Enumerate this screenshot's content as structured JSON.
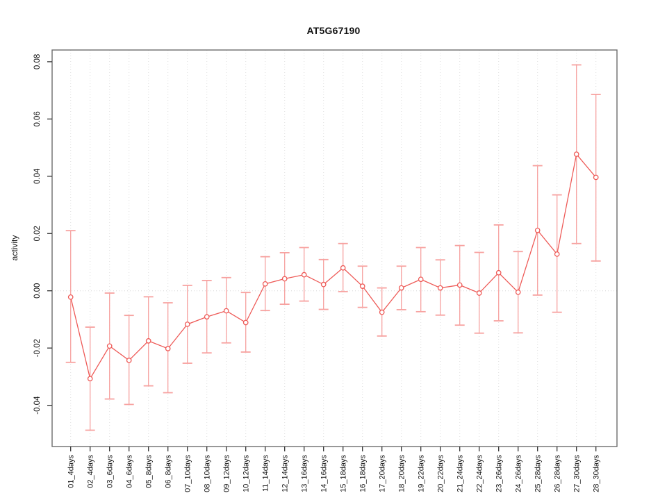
{
  "chart_data": {
    "type": "line",
    "title": "AT5G67190",
    "xlabel": "",
    "ylabel": "activity",
    "legend": "none",
    "categories": [
      "01_4days",
      "02_4days",
      "03_6days",
      "04_6days",
      "05_8days",
      "06_8days",
      "07_10days",
      "08_10days",
      "09_12days",
      "10_12days",
      "11_14days",
      "12_14days",
      "13_16days",
      "14_16days",
      "15_18days",
      "16_18days",
      "17_20days",
      "18_20days",
      "19_22days",
      "20_22days",
      "21_24days",
      "22_24days",
      "23_26days",
      "24_26days",
      "25_28days",
      "26_28days",
      "27_30days",
      "28_30days"
    ],
    "series": [
      {
        "name": "activity",
        "marker": "open-circle",
        "values": [
          -0.0022,
          -0.0307,
          -0.0193,
          -0.0243,
          -0.0175,
          -0.0202,
          -0.0117,
          -0.0091,
          -0.007,
          -0.0111,
          0.0024,
          0.0042,
          0.0056,
          0.0022,
          0.008,
          0.0016,
          -0.0075,
          0.001,
          0.004,
          0.001,
          0.002,
          -0.0008,
          0.0063,
          -0.0005,
          0.0211,
          0.0128,
          0.0477,
          0.0396
        ],
        "error_upper": [
          0.021,
          -0.0127,
          -0.0008,
          -0.0086,
          -0.0021,
          -0.0042,
          0.0019,
          0.0036,
          0.0046,
          -0.0006,
          0.0119,
          0.0133,
          0.0151,
          0.0109,
          0.0165,
          0.0086,
          0.001,
          0.0086,
          0.0151,
          0.0108,
          0.0158,
          0.0134,
          0.023,
          0.0137,
          0.0437,
          0.0335,
          0.0789,
          0.0686
        ],
        "error_lower": [
          -0.025,
          -0.0487,
          -0.0378,
          -0.0397,
          -0.0332,
          -0.0356,
          -0.0253,
          -0.0217,
          -0.0182,
          -0.0214,
          -0.0069,
          -0.0047,
          -0.0036,
          -0.0065,
          -0.0003,
          -0.0058,
          -0.0158,
          -0.0066,
          -0.0073,
          -0.0085,
          -0.012,
          -0.0148,
          -0.0105,
          -0.0147,
          -0.0015,
          -0.0075,
          0.0165,
          0.0104
        ]
      }
    ],
    "yticks": [
      "-0.04",
      "-0.02",
      "0.00",
      "0.02",
      "0.04",
      "0.06",
      "0.08"
    ],
    "ytick_values": [
      -0.04,
      -0.02,
      0.0,
      0.02,
      0.04,
      0.06,
      0.08
    ],
    "ylim": [
      -0.0544,
      0.0841
    ],
    "grid": {
      "vertical": "dotted-per-category",
      "horizontal": "dotted-zero-line"
    },
    "colors": {
      "series": "#ee5a57",
      "error_bar": "#f7a2a0",
      "grid_line": "#dedede",
      "zero_line": "#d6d6d6",
      "axis_box": "#6b6b6b",
      "tick": "#333333",
      "text": "#111111"
    }
  }
}
